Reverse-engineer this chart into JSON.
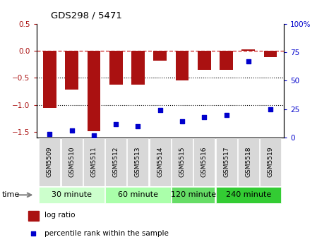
{
  "title": "GDS298 / 5471",
  "samples": [
    "GSM5509",
    "GSM5510",
    "GSM5511",
    "GSM5512",
    "GSM5513",
    "GSM5514",
    "GSM5515",
    "GSM5516",
    "GSM5517",
    "GSM5518",
    "GSM5519"
  ],
  "log_ratio": [
    -1.05,
    -0.72,
    -1.48,
    -0.62,
    -0.62,
    -0.18,
    -0.55,
    -0.35,
    -0.35,
    0.03,
    -0.12
  ],
  "percentile": [
    3,
    6,
    2,
    12,
    10,
    24,
    14,
    18,
    20,
    67,
    25
  ],
  "bar_color": "#AA1111",
  "dot_color": "#0000CC",
  "ref_line_color": "#CC2222",
  "grid_color": "#000000",
  "ylim_left": [
    -1.6,
    0.5
  ],
  "ylim_right": [
    0,
    100
  ],
  "yticks_left": [
    -1.5,
    -1.0,
    -0.5,
    0,
    0.5
  ],
  "yticks_right": [
    0,
    25,
    50,
    75,
    100
  ],
  "groups": [
    {
      "label": "30 minute",
      "start": 0,
      "end": 3,
      "color": "#ccffcc"
    },
    {
      "label": "60 minute",
      "start": 3,
      "end": 6,
      "color": "#aaffaa"
    },
    {
      "label": "120 minute",
      "start": 6,
      "end": 8,
      "color": "#66dd66"
    },
    {
      "label": "240 minute",
      "start": 8,
      "end": 11,
      "color": "#33cc33"
    }
  ],
  "time_label": "time",
  "legend_log": "log ratio",
  "legend_pct": "percentile rank within the sample",
  "xlabel_rotation": 90,
  "bar_width": 0.6
}
